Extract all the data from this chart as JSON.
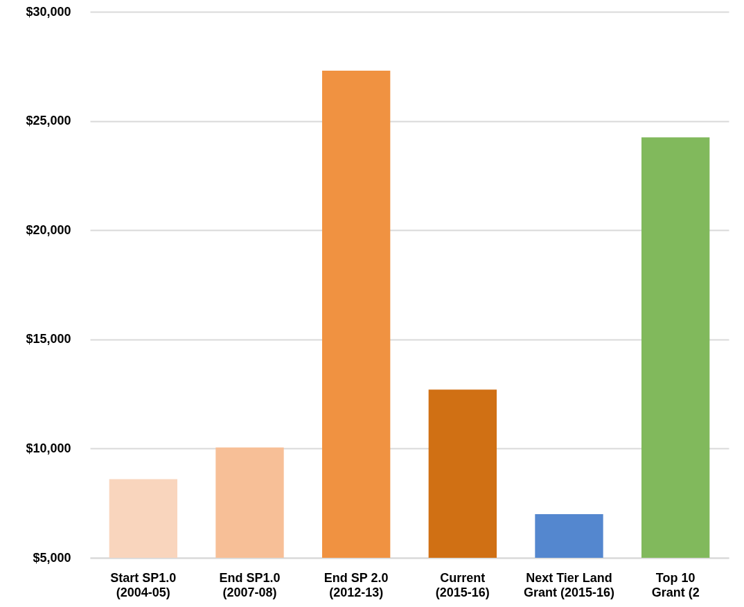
{
  "chart_data": {
    "type": "bar",
    "categories": [
      "Start SP1.0\n(2004-05)",
      "End SP1.0\n(2007-08)",
      "End SP 2.0\n(2012-13)",
      "Current\n(2015-16)",
      "Next Tier Land\nGrant (2015-16)",
      "Top 10\nGrant (2"
    ],
    "values": [
      8600,
      10050,
      27300,
      12700,
      7000,
      24250
    ],
    "colors": [
      "#f9d5bd",
      "#f7bf97",
      "#f09241",
      "#d07014",
      "#5487cf",
      "#81b95c"
    ],
    "ylim": [
      5000,
      30000
    ],
    "yticks": [
      {
        "value": 5000,
        "label": "$5,000"
      },
      {
        "value": 10000,
        "label": "$10,000"
      },
      {
        "value": 15000,
        "label": "$15,000"
      },
      {
        "value": 20000,
        "label": "$20,000"
      },
      {
        "value": 25000,
        "label": "$25,000"
      },
      {
        "value": 30000,
        "label": "$30,000"
      }
    ],
    "grid": "y"
  }
}
